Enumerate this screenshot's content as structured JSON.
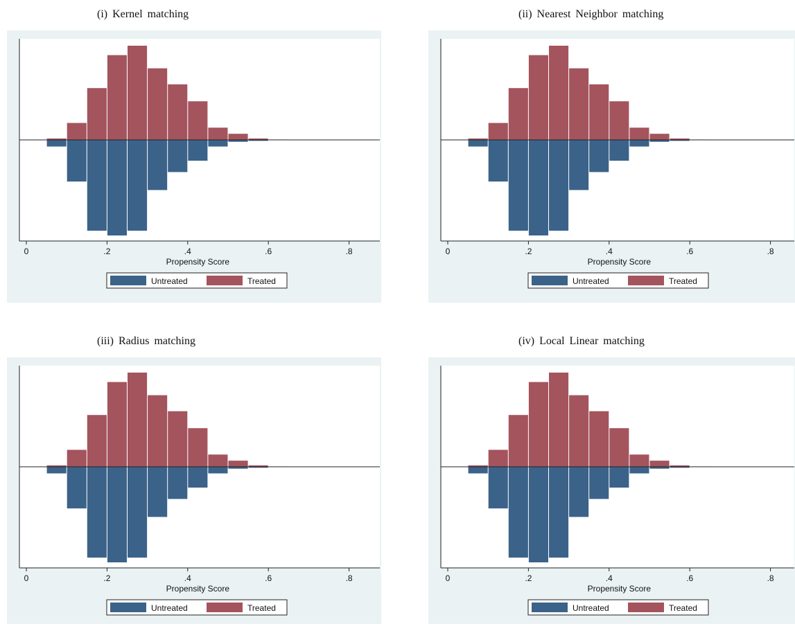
{
  "chart_data": [
    {
      "type": "bar",
      "title": "(i) Kernel matching",
      "xlabel": "Propensity Score",
      "ylabel": "",
      "xticks": [
        "0",
        ".2",
        ".4",
        ".6",
        ".8"
      ],
      "xlim": [
        0,
        0.85
      ],
      "x": [
        0.075,
        0.125,
        0.175,
        0.225,
        0.275,
        0.325,
        0.375,
        0.425,
        0.475,
        0.525,
        0.575,
        0.625,
        0.675,
        0.725,
        0.775,
        0.825
      ],
      "series": [
        {
          "name": "Treated",
          "values": [
            1.5,
            18,
            55,
            90,
            100,
            76,
            59,
            41,
            13,
            6.5,
            1.5,
            0.4,
            0.2,
            0.1,
            0.1,
            0.2
          ]
        },
        {
          "name": "Untreated",
          "values": [
            -7,
            -44,
            -96,
            -101,
            -96,
            -53,
            -34,
            -22,
            -7,
            -2,
            -1,
            -0.2,
            -0.1,
            0,
            0,
            0
          ]
        }
      ],
      "legend": {
        "position": "bottom",
        "entries": [
          "Untreated",
          "Treated"
        ]
      },
      "colors": {
        "Treated": "#a4545d",
        "Untreated": "#3b6289"
      }
    },
    {
      "type": "bar",
      "title": "(ii) Nearest Neighbor matching",
      "xlabel": "Propensity Score",
      "ylabel": "",
      "xticks": [
        "0",
        ".2",
        ".4",
        ".6",
        ".8"
      ],
      "xlim": [
        0,
        0.85
      ],
      "x": [
        0.075,
        0.125,
        0.175,
        0.225,
        0.275,
        0.325,
        0.375,
        0.425,
        0.475,
        0.525,
        0.575,
        0.625,
        0.675,
        0.725,
        0.775,
        0.825
      ],
      "series": [
        {
          "name": "Treated",
          "values": [
            1.5,
            18,
            55,
            90,
            100,
            76,
            59,
            41,
            13,
            6.5,
            1.5,
            0.4,
            0.2,
            0.1,
            0.1,
            0.2
          ]
        },
        {
          "name": "Untreated",
          "values": [
            -7,
            -44,
            -96,
            -101,
            -96,
            -53,
            -34,
            -22,
            -7,
            -2,
            -1,
            -0.2,
            -0.1,
            0,
            0,
            0
          ]
        }
      ],
      "legend": {
        "position": "bottom",
        "entries": [
          "Untreated",
          "Treated"
        ]
      },
      "colors": {
        "Treated": "#a4545d",
        "Untreated": "#3b6289"
      }
    },
    {
      "type": "bar",
      "title": "(iii) Radius matching",
      "xlabel": "Propensity Score",
      "ylabel": "",
      "xticks": [
        "0",
        ".2",
        ".4",
        ".6",
        ".8"
      ],
      "xlim": [
        0,
        0.85
      ],
      "x": [
        0.075,
        0.125,
        0.175,
        0.225,
        0.275,
        0.325,
        0.375,
        0.425,
        0.475,
        0.525,
        0.575,
        0.625,
        0.675,
        0.725,
        0.775,
        0.825
      ],
      "series": [
        {
          "name": "Treated",
          "values": [
            1.5,
            18,
            55,
            90,
            100,
            76,
            59,
            41,
            13,
            6.5,
            1.5,
            0.4,
            0.2,
            0.1,
            0.1,
            0.2
          ]
        },
        {
          "name": "Untreated",
          "values": [
            -7,
            -44,
            -96,
            -101,
            -96,
            -53,
            -34,
            -22,
            -7,
            -2,
            -1,
            -0.2,
            -0.1,
            0,
            0,
            0
          ]
        }
      ],
      "legend": {
        "position": "bottom",
        "entries": [
          "Untreated",
          "Treated"
        ]
      },
      "colors": {
        "Treated": "#a4545d",
        "Untreated": "#3b6289"
      }
    },
    {
      "type": "bar",
      "title": "(iv) Local Linear matching",
      "xlabel": "Propensity Score",
      "ylabel": "",
      "xticks": [
        "0",
        ".2",
        ".4",
        ".6",
        ".8"
      ],
      "xlim": [
        0,
        0.85
      ],
      "x": [
        0.075,
        0.125,
        0.175,
        0.225,
        0.275,
        0.325,
        0.375,
        0.425,
        0.475,
        0.525,
        0.575,
        0.625,
        0.675,
        0.725,
        0.775,
        0.825
      ],
      "series": [
        {
          "name": "Treated",
          "values": [
            1.5,
            18,
            55,
            90,
            100,
            76,
            59,
            41,
            13,
            6.5,
            1.5,
            0.4,
            0.2,
            0.1,
            0.1,
            0.2
          ]
        },
        {
          "name": "Untreated",
          "values": [
            -7,
            -44,
            -96,
            -101,
            -96,
            -53,
            -34,
            -22,
            -7,
            -2,
            -1,
            -0.2,
            -0.1,
            0,
            0,
            0
          ]
        }
      ],
      "legend": {
        "position": "bottom",
        "entries": [
          "Untreated",
          "Treated"
        ]
      },
      "colors": {
        "Treated": "#a4545d",
        "Untreated": "#3b6289"
      }
    }
  ]
}
